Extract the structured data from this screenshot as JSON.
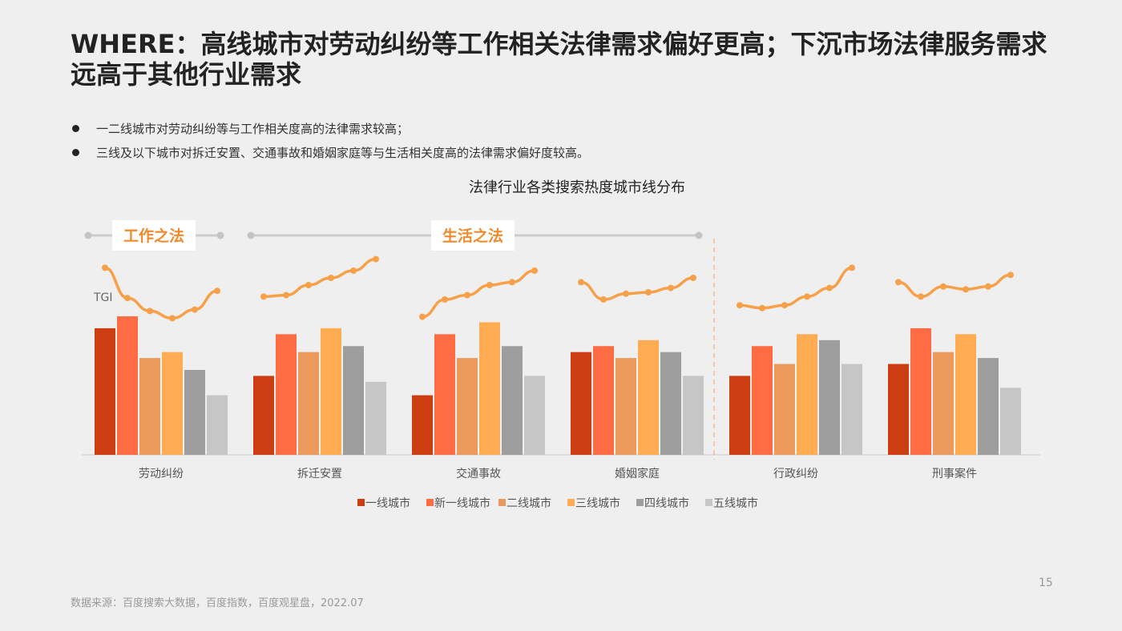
{
  "slide": {
    "title": "WHERE：高线城市对劳动纠纷等工作相关法律需求偏好更高；下沉市场法律服务需求远高于其他行业需求",
    "bullets": [
      "一二线城市对劳动纠纷等与工作相关度高的法律需求较高；",
      "三线及以下城市对拆迁安置、交通事故和婚姻家庭等与生活相关度高的法律需求偏好度较高。"
    ],
    "source": "数据来源：百度搜索大数据，百度指数，百度观星盘，2022.07",
    "page_number": "15"
  },
  "colors": {
    "series": [
      "#cc3d12",
      "#ff6b42",
      "#eb9a5c",
      "#ffac52",
      "#9e9e9e",
      "#c6c6c6"
    ],
    "tgi_line": "#f6a04a",
    "group_label": "#f08a2a",
    "group_line": "#cccccc",
    "divider": "#f6b894"
  },
  "chart_data": {
    "type": "bar",
    "title": "法律行业各类搜索热度城市线分布",
    "categories": [
      "劳动纠纷",
      "拆迁安置",
      "交通事故",
      "婚姻家庭",
      "行政纠纷",
      "刑事案件"
    ],
    "series": [
      {
        "name": "一线城市",
        "values": [
          85,
          53,
          40,
          69,
          53,
          61
        ]
      },
      {
        "name": "新一线城市",
        "values": [
          93,
          81,
          81,
          73,
          73,
          85
        ]
      },
      {
        "name": "二线城市",
        "values": [
          65,
          69,
          65,
          65,
          61,
          69
        ]
      },
      {
        "name": "三线城市",
        "values": [
          69,
          85,
          89,
          77,
          81,
          81
        ]
      },
      {
        "name": "四线城市",
        "values": [
          57,
          73,
          73,
          69,
          77,
          65
        ]
      },
      {
        "name": "五线城市",
        "values": [
          40,
          49,
          53,
          53,
          61,
          45
        ]
      }
    ],
    "ylim": [
      0,
      100
    ],
    "tgi": {
      "label": "TGI",
      "values": [
        [
          132,
          111,
          102,
          97,
          103,
          116
        ],
        [
          112,
          113,
          120,
          125,
          130,
          138
        ],
        [
          98,
          110,
          113,
          120,
          122,
          130
        ],
        [
          122,
          110,
          114,
          115,
          118,
          125
        ],
        [
          106,
          104,
          106,
          112,
          118,
          132
        ],
        [
          122,
          112,
          119,
          117,
          119,
          127
        ]
      ]
    },
    "groups": [
      {
        "label": "工作之法",
        "categories": [
          0
        ]
      },
      {
        "label": "生活之法",
        "categories": [
          1,
          2,
          3
        ]
      }
    ]
  }
}
